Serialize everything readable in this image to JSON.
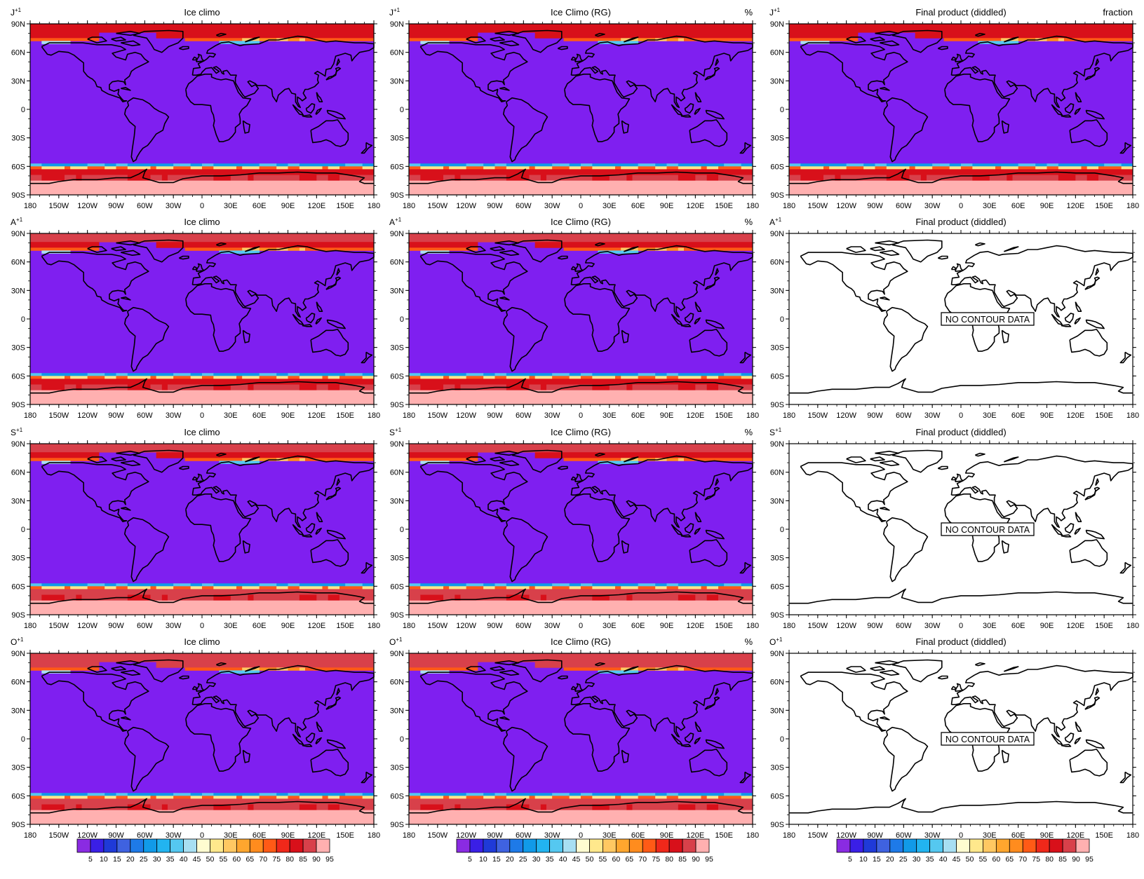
{
  "figure": {
    "row_labels": [
      "J",
      "A",
      "S",
      "O"
    ],
    "row_label_superscript": "+1",
    "column_titles": [
      "Ice climo",
      "Ice Climo (RG)",
      "Final product (diddled)"
    ],
    "units": {
      "row1": [
        "",
        "%",
        "fraction"
      ],
      "other_rows": [
        "",
        "%",
        ""
      ]
    },
    "lat_ticks": [
      "90N",
      "60N",
      "30N",
      "0",
      "30S",
      "60S",
      "90S"
    ],
    "lon_ticks": [
      "180",
      "150W",
      "120W",
      "90W",
      "60W",
      "30W",
      "0",
      "30E",
      "60E",
      "90E",
      "120E",
      "150E",
      "180"
    ],
    "no_data_text": "NO CONTOUR DATA",
    "panels_with_no_data": [
      [
        1,
        2
      ],
      [
        2,
        2
      ],
      [
        3,
        2
      ]
    ],
    "colorbar": {
      "labels": [
        "5",
        "10",
        "15",
        "20",
        "25",
        "30",
        "35",
        "40",
        "45",
        "50",
        "55",
        "60",
        "65",
        "70",
        "75",
        "80",
        "85",
        "90",
        "95"
      ],
      "colors": [
        "#8a2be2",
        "#3a1fe6",
        "#1f3ad8",
        "#3f62e0",
        "#1e7ae8",
        "#119ae8",
        "#22b4f0",
        "#55c8f0",
        "#a8dff2",
        "#fffcd0",
        "#ffe88c",
        "#ffc862",
        "#ffa62e",
        "#ff8c1e",
        "#ff5a16",
        "#f0281a",
        "#d8101a",
        "#d8404a",
        "#ffb0b0"
      ]
    },
    "colors": {
      "open_water": "#7f1ff0",
      "antarctic_interior": "#ffb0b0"
    }
  }
}
